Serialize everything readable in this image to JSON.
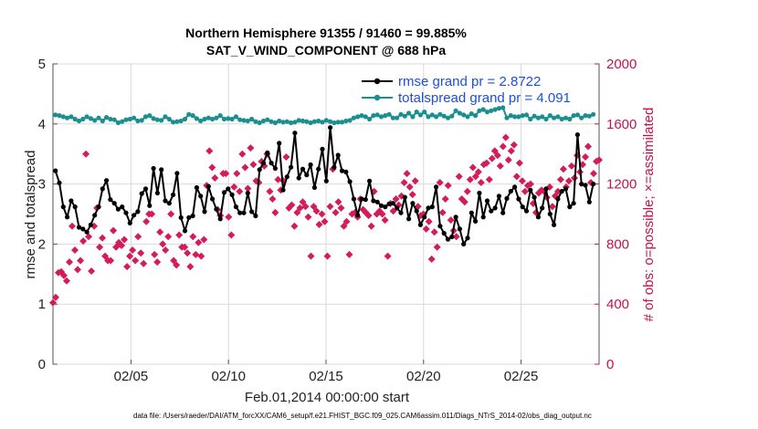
{
  "chart_data": {
    "type": "line",
    "title_line1": "Northern Hemisphere 91355 / 91460 = 99.885%",
    "title_line2": "SAT_V_WIND_COMPONENT @ 688 hPa",
    "xlabel": "Feb.01,2014 00:00:00 start",
    "ylabel_left": "rmse and totalspread",
    "ylabel_right": "# of obs: o=possible; ×=assimilated",
    "footnote": "data file: /Users/raeder/DAI/ATM_forcXX/CAM6_setup/f.e21.FHIST_BGC.f09_025.CAM6assim.011/Diags_NTrS_2014-02/obs_diag_output.nc",
    "xlim": [
      1,
      29
    ],
    "ylim_left": [
      0,
      5
    ],
    "ylim_right": [
      0,
      2000
    ],
    "x_ticks": [
      5,
      10,
      15,
      20,
      25
    ],
    "x_tick_labels": [
      "02/05",
      "02/10",
      "02/15",
      "02/20",
      "02/25"
    ],
    "y_ticks_left": [
      0,
      1,
      2,
      3,
      4,
      5
    ],
    "y_tick_labels_left": [
      "0",
      "1",
      "2",
      "3",
      "4",
      "5"
    ],
    "y_ticks_right": [
      0,
      400,
      800,
      1200,
      1600,
      2000
    ],
    "y_tick_labels_right": [
      "0",
      "400",
      "800",
      "1200",
      "1600",
      "2000"
    ],
    "legend_position": "top-right",
    "colors": {
      "rmse": "#000000",
      "spread": "#1a8f8f",
      "obs": "#d41b5c",
      "right_axis": "#c8104f",
      "legend_text": "#1f4fd8"
    },
    "series": [
      {
        "name": "rmse grand pr = 2.8722",
        "axis": "left",
        "values": [
          3.22,
          3.02,
          2.62,
          2.45,
          2.72,
          2.62,
          2.28,
          2.25,
          2.2,
          2.32,
          2.48,
          2.62,
          2.92,
          3.06,
          2.74,
          2.68,
          2.58,
          2.62,
          2.52,
          2.35,
          2.48,
          2.54,
          2.84,
          2.92,
          2.64,
          3.26,
          2.85,
          3.24,
          2.72,
          2.68,
          2.82,
          3.18,
          2.44,
          2.22,
          2.44,
          2.47,
          2.94,
          2.8,
          2.54,
          2.96,
          2.75,
          2.58,
          2.42,
          2.86,
          2.92,
          2.82,
          2.62,
          2.52,
          2.52,
          2.85,
          2.54,
          2.47,
          3.24,
          3.35,
          3.52,
          3.35,
          3.26,
          3.68,
          2.9,
          3.12,
          3.28,
          3.85,
          3.1,
          3.25,
          3.15,
          3.32,
          2.94,
          3.25,
          3.58,
          3.05,
          3.94,
          3.28,
          3.48,
          3.22,
          3.2,
          3.04,
          2.75,
          2.48,
          2.75,
          2.74,
          3.05,
          2.72,
          2.7,
          2.64,
          2.62,
          2.67,
          2.68,
          2.6,
          2.52,
          2.78,
          2.42,
          2.68,
          2.55,
          2.32,
          2.45,
          2.6,
          2.62,
          2.95,
          2.3,
          2.18,
          2.08,
          2.12,
          2.45,
          2.25,
          2.0,
          2.1,
          2.52,
          2.38,
          2.85,
          2.45,
          2.72,
          2.55,
          2.6,
          2.8,
          2.52,
          2.76,
          2.88,
          2.95,
          2.75,
          2.62,
          2.55,
          2.9,
          2.78,
          2.45,
          2.6,
          2.92,
          2.5,
          2.32,
          2.75,
          2.88,
          2.92,
          2.62,
          2.68,
          3.82,
          3.0,
          2.98,
          2.7,
          3.0
        ]
      },
      {
        "name": "totalspread grand pr = 4.091",
        "axis": "left",
        "values": [
          4.15,
          4.14,
          4.12,
          4.1,
          4.12,
          4.08,
          4.05,
          4.08,
          4.12,
          4.09,
          4.06,
          4.1,
          4.05,
          4.11,
          4.08,
          4.07,
          4.02,
          4.04,
          4.07,
          4.08,
          4.1,
          4.05,
          4.06,
          4.12,
          4.14,
          4.09,
          4.07,
          4.06,
          4.12,
          4.08,
          4.03,
          4.04,
          4.05,
          4.08,
          4.16,
          4.14,
          4.09,
          4.05,
          4.08,
          4.1,
          4.08,
          4.1,
          4.14,
          4.08,
          4.09,
          4.08,
          4.12,
          4.07,
          4.06,
          4.05,
          4.08,
          4.04,
          4.02,
          4.05,
          4.07,
          4.04,
          4.02,
          4.05,
          4.03,
          4.04,
          4.02,
          4.03,
          4.06,
          4.05,
          4.04,
          4.02,
          4.04,
          4.05,
          4.03,
          4.06,
          4.04,
          4.02,
          4.03,
          4.03,
          4.05,
          4.06,
          4.1,
          4.12,
          4.14,
          4.12,
          4.08,
          4.14,
          4.15,
          4.12,
          4.14,
          4.16,
          4.1,
          4.1,
          4.16,
          4.13,
          4.18,
          4.12,
          4.2,
          4.15,
          4.2,
          4.12,
          4.15,
          4.12,
          4.16,
          4.13,
          4.1,
          4.13,
          4.22,
          4.18,
          4.15,
          4.12,
          4.17,
          4.14,
          4.22,
          4.24,
          4.2,
          4.22,
          4.24,
          4.26,
          4.27,
          4.1,
          4.14,
          4.12,
          4.12,
          4.14,
          4.15,
          4.08,
          4.13,
          4.1,
          4.12,
          4.08,
          4.14,
          4.1,
          4.12,
          4.08,
          4.1,
          4.08,
          4.14,
          4.15,
          4.1,
          4.14,
          4.13,
          4.16
        ]
      },
      {
        "name": "obs assimilated",
        "axis": "right",
        "values": [
          410,
          445,
          610,
          615,
          590,
          555,
          680,
          920,
          760,
          630,
          690,
          820,
          1400,
          850,
          620,
          920,
          1040,
          780,
          840,
          720,
          690,
          690,
          890,
          780,
          810,
          790,
          830,
          650,
          720,
          760,
          690,
          850,
          740,
          670,
          950,
          1000,
          1000,
          730,
          680,
          880,
          800,
          760,
          850,
          1000,
          690,
          660,
          860,
          780,
          780,
          740,
          650,
          850,
          730,
          810,
          720,
          830,
          1190,
          1420,
          1310,
          1240,
          1030,
          990,
          1270,
          1270,
          980,
          860,
          1180,
          1270,
          1150,
          1400,
          1310,
          1170,
          1440,
          1330,
          1220,
          1210,
          1350,
          1320,
          1400,
          1150,
          1100,
          1010,
          1230,
          1160,
          1220,
          1380,
          1040,
          1060,
          920,
          1010,
          1040,
          1080,
          1050,
          980,
          720,
          1050,
          1020,
          930,
          1000,
          950,
          720,
          1050,
          1300,
          1010,
          1080,
          1040,
          920,
          950,
          730,
          1000,
          1010,
          980,
          1100,
          1030,
          1010,
          990,
          920,
          1150,
          1000,
          1020,
          1000,
          960,
          720,
          1070,
          1020,
          1100,
          1060,
          1120,
          1210,
          1270,
          1180,
          1130,
          1220,
          1050,
          990,
          1000,
          900,
          950,
          700,
          880,
          780,
          1210,
          1010,
          1100,
          1190,
          960,
          890,
          850,
          1250,
          1100,
          1080,
          1150,
          1230,
          1310,
          1250,
          1280,
          1210,
          1330,
          1340,
          1230,
          1370,
          1420,
          1390,
          1320,
          1450,
          1510,
          1360,
          1420,
          1460,
          1250,
          1340,
          1220,
          1150,
          1190,
          1200,
          1070,
          1010,
          1140,
          1160,
          1150,
          1110,
          1180,
          1050,
          1120,
          1150,
          1230,
          1300,
          1180,
          1220,
          1320,
          1240,
          1390,
          1280,
          1330,
          1380,
          1450,
          1210,
          1270,
          1350,
          1360
        ]
      }
    ],
    "legend": [
      {
        "label": "rmse grand pr = 2.8722"
      },
      {
        "label": "totalspread grand pr = 4.091"
      }
    ]
  }
}
